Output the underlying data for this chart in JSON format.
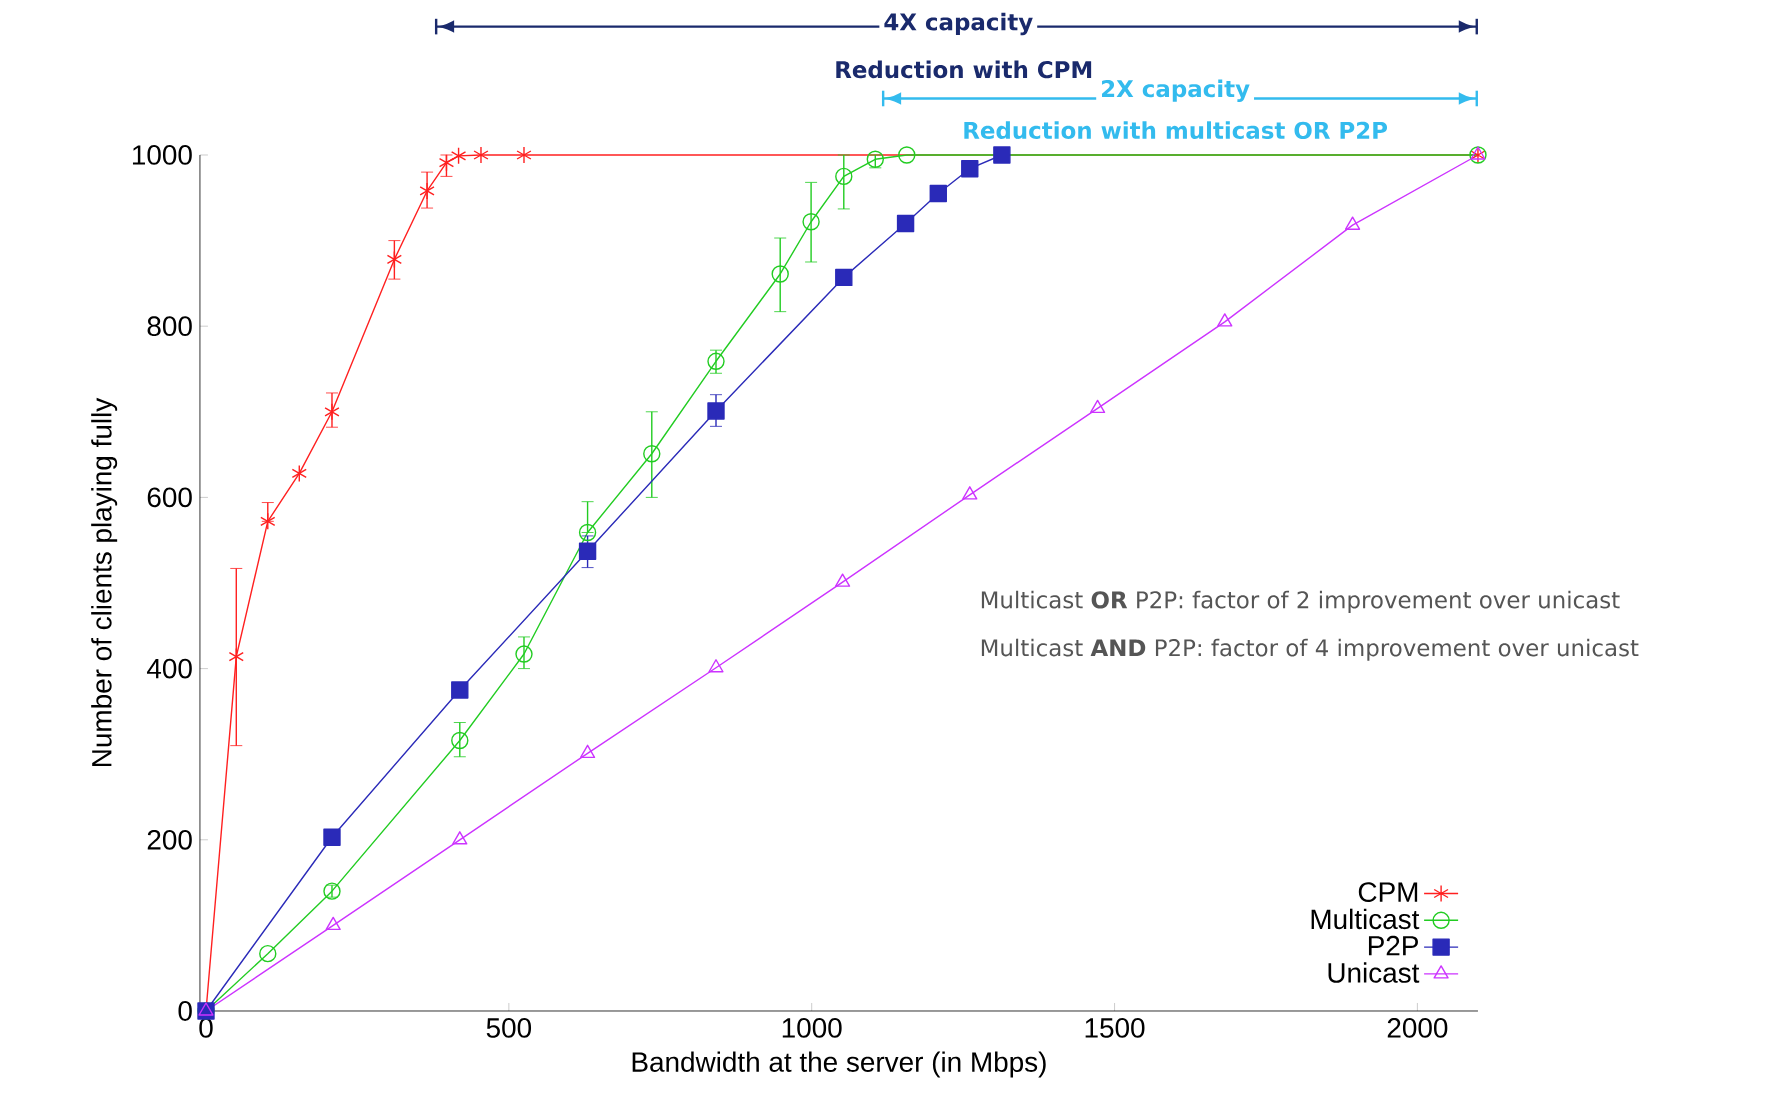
{
  "chart_data": {
    "type": "line",
    "xlabel": "Bandwidth at the server (in Mbps)",
    "ylabel": "Number of clients playing fully",
    "xlim": [
      -10,
      2100
    ],
    "ylim": [
      0,
      1000
    ],
    "xticks": [
      0,
      500,
      1000,
      1500,
      2000
    ],
    "yticks": [
      0,
      200,
      400,
      600,
      800,
      1000
    ],
    "grid": false,
    "legend": "bottom right",
    "line_style": "solid",
    "annotations": [
      "4X capacity",
      "Reduction with CPM",
      "2X capacity",
      "Reduction with multicast **OR** P2P",
      "Multicast **OR** P2P: factor of 2 improvement over unicast",
      "Multicast **AND** P2P: factor of 4 improvement over unicast"
    ],
    "series": [
      {
        "name": "CPM",
        "color": "#ff2020",
        "marker": "cross",
        "x": [
          0,
          50,
          102,
          154,
          208,
          311,
          365,
          397,
          417,
          454,
          525,
          2100
        ],
        "values": [
          0,
          414,
          572,
          628,
          700,
          878,
          958,
          991,
          999,
          1000,
          1000,
          1000
        ],
        "errors": [
          null,
          [
            310,
            517
          ],
          [
            572,
            594
          ],
          null,
          [
            682,
            722
          ],
          [
            855,
            900
          ],
          [
            938,
            980
          ],
          [
            975,
            1000
          ],
          null,
          null,
          null,
          null
        ]
      },
      {
        "name": "Multicast",
        "color": "#22cc22",
        "marker": "circle",
        "x": [
          0,
          102,
          208,
          419,
          525,
          630,
          736,
          842,
          948,
          999,
          1053,
          1105,
          1157,
          2100
        ],
        "values": [
          0,
          67,
          140,
          316,
          417,
          559,
          651,
          759,
          861,
          922,
          975,
          995,
          1000,
          1000
        ],
        "errors": [
          null,
          null,
          [
            133,
            147
          ],
          [
            297,
            337
          ],
          [
            400,
            437
          ],
          [
            559,
            595
          ],
          [
            600,
            700
          ],
          [
            745,
            772
          ],
          [
            817,
            903
          ],
          [
            875,
            968
          ],
          [
            937,
            1000
          ],
          [
            985,
            1000
          ],
          null,
          null
        ]
      },
      {
        "name": "P2P",
        "color": "#2a2ab8",
        "marker": "square",
        "x": [
          0,
          208,
          419,
          630,
          842,
          1053,
          1155,
          1209,
          1261,
          1314
        ],
        "values": [
          0,
          203,
          375,
          537,
          701,
          857,
          920,
          955,
          984,
          1000
        ],
        "errors": [
          null,
          null,
          null,
          [
            518,
            555
          ],
          [
            683,
            720
          ],
          null,
          null,
          null,
          null,
          null
        ]
      },
      {
        "name": "Unicast",
        "color": "#cc33ff",
        "marker": "triangle",
        "x": [
          0,
          210,
          419,
          630,
          842,
          1051,
          1261,
          1472,
          1682,
          1893,
          2100
        ],
        "values": [
          0,
          100,
          200,
          301,
          401,
          501,
          603,
          704,
          805,
          918,
          1000
        ]
      }
    ]
  }
}
